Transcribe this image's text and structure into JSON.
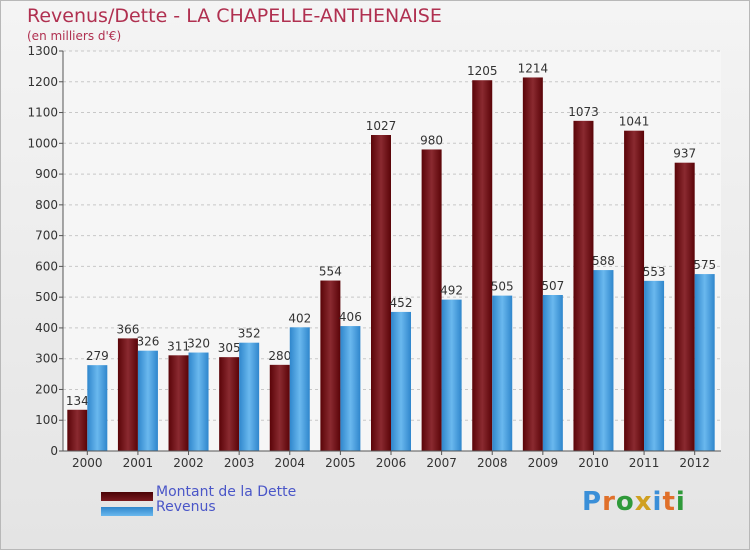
{
  "colors": {
    "dette": "#6b0a0f",
    "revenus": "#3d95d8",
    "title": "#b03050",
    "legend_text": "#4a56c8"
  },
  "header": {
    "title": "Revenus/Dette - LA CHAPELLE-ANTHENAISE",
    "subtitle": "(en milliers d'€)"
  },
  "legend": [
    {
      "label": "Montant de la Dette",
      "color": "#6b0a0f"
    },
    {
      "label": "Revenus",
      "color": "#3d95d8"
    }
  ],
  "logo": {
    "text": "Proxiti"
  },
  "chart_data": {
    "type": "bar",
    "title": "Revenus/Dette - LA CHAPELLE-ANTHENAISE",
    "ylabel": "(en milliers d'€)",
    "xlabel": "",
    "categories": [
      "2000",
      "2001",
      "2002",
      "2003",
      "2004",
      "2005",
      "2006",
      "2007",
      "2008",
      "2009",
      "2010",
      "2011",
      "2012"
    ],
    "series": [
      {
        "name": "Montant de la Dette",
        "values": [
          134,
          366,
          311,
          305,
          280,
          554,
          1027,
          980,
          1205,
          1214,
          1073,
          1041,
          937
        ]
      },
      {
        "name": "Revenus",
        "values": [
          279,
          326,
          320,
          352,
          402,
          406,
          452,
          492,
          505,
          507,
          588,
          553,
          575
        ]
      }
    ],
    "ylim": [
      0,
      1300
    ],
    "yticks": [
      0,
      100,
      200,
      300,
      400,
      500,
      600,
      700,
      800,
      900,
      1000,
      1100,
      1200,
      1300
    ],
    "grid": true,
    "legend_position": "bottom-left"
  }
}
